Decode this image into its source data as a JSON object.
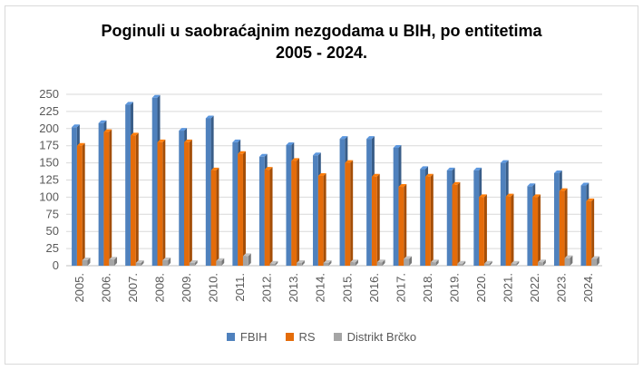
{
  "title_line1": "Poginuli u saobraćajnim  nezgodama u BIH, po entitetima",
  "title_line2": "2005 - 2024.",
  "chart_data": {
    "type": "bar",
    "categories": [
      "2005.",
      "2006.",
      "2007.",
      "2008.",
      "2009.",
      "2010.",
      "2011.",
      "2012.",
      "2013.",
      "2014.",
      "2015.",
      "2016.",
      "2017.",
      "2018.",
      "2019.",
      "2020.",
      "2021.",
      "2022.",
      "2023.",
      "2024."
    ],
    "series": [
      {
        "name": "FBIH",
        "color": "#4f81bd",
        "values": [
          202,
          208,
          235,
          245,
          197,
          215,
          180,
          159,
          176,
          161,
          185,
          185,
          172,
          141,
          139,
          139,
          150,
          116,
          135,
          117
        ]
      },
      {
        "name": "RS",
        "color": "#e46c0a",
        "values": [
          175,
          195,
          190,
          180,
          180,
          139,
          163,
          140,
          153,
          131,
          150,
          130,
          115,
          130,
          118,
          100,
          101,
          100,
          109,
          94
        ]
      },
      {
        "name": "Distrikt Brčko",
        "color": "#a5a5a5",
        "values": [
          8,
          9,
          4,
          8,
          4,
          7,
          14,
          3,
          4,
          4,
          5,
          5,
          10,
          5,
          3,
          3,
          3,
          5,
          11,
          10
        ]
      }
    ],
    "ylim": [
      0,
      250
    ],
    "yticks": [
      0,
      25,
      50,
      75,
      100,
      125,
      150,
      175,
      200,
      225,
      250
    ],
    "grid": true,
    "legend": "bottom",
    "xlabel": "",
    "ylabel": ""
  }
}
